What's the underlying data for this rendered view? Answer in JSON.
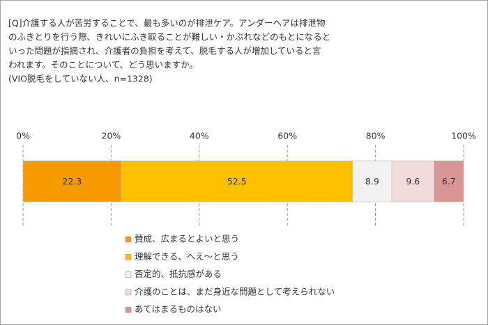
{
  "chart_data": {
    "type": "stacked-bar-horizontal",
    "title": [
      "[Q]介護する人が苦労することで、最も多いのが排泄ケア。アンダーヘアは排泄物",
      "のふきとりを行う際、きれいにふき取ることが難しい・かぶれなどのもとになると",
      "いった問題が指摘され、介護者の負担を考えて、脱毛する人が増加していると言",
      "われます。そのことについて、どう思いますか。"
    ],
    "subtitle": "(VIO脱毛をしていない人、n=1328)",
    "xlim": [
      0,
      100
    ],
    "xticks": [
      {
        "value": 0,
        "label": "0%"
      },
      {
        "value": 20,
        "label": "20%"
      },
      {
        "value": 40,
        "label": "40%"
      },
      {
        "value": 60,
        "label": "60%"
      },
      {
        "value": 80,
        "label": "80%"
      },
      {
        "value": 100,
        "label": "100%"
      }
    ],
    "grid": true,
    "series": [
      {
        "name": "賛成、広まるとよいと思う",
        "color": "#f79a00",
        "values": [
          22.3
        ]
      },
      {
        "name": "理解できる、へえ～と思う",
        "color": "#ffc000",
        "values": [
          52.5
        ]
      },
      {
        "name": "否定的、抵抗感がある",
        "color": "#f2f2f2",
        "values": [
          8.9
        ]
      },
      {
        "name": "介護のことは、まだ身近な問題として考えられない",
        "color": "#f2dcdb",
        "values": [
          9.6
        ]
      },
      {
        "name": "あてはまるものはない",
        "color": "#d99594",
        "values": [
          6.7
        ]
      }
    ]
  }
}
